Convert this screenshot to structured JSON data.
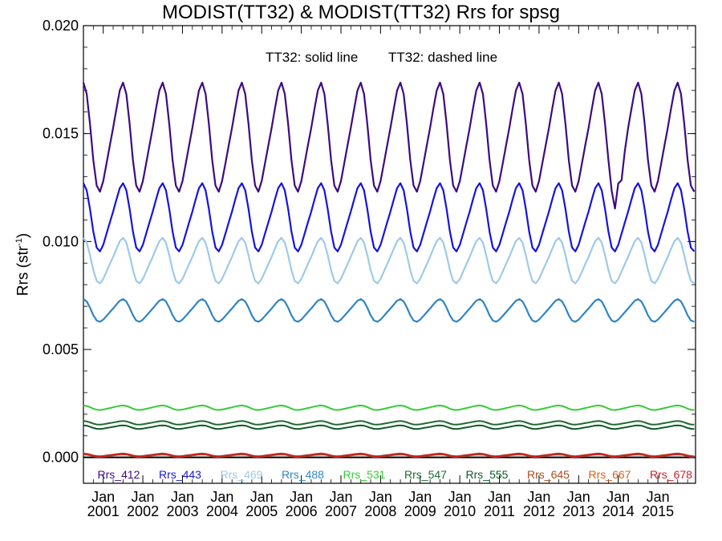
{
  "chart_data": {
    "type": "line",
    "title": "MODIST(TT32) & MODIST(TT32)  Rrs for spsg",
    "ylabel_base": "Rrs (str",
    "ylabel_sup": "-1",
    "ylabel_end": ")",
    "ylim": [
      -0.0012,
      0.02
    ],
    "xlim": [
      2000.5,
      2015.95
    ],
    "yticks": [
      {
        "value": 0.0,
        "label": "0.000"
      },
      {
        "value": 0.005,
        "label": "0.005"
      },
      {
        "value": 0.01,
        "label": "0.010"
      },
      {
        "value": 0.015,
        "label": "0.015"
      },
      {
        "value": 0.02,
        "label": "0.020"
      }
    ],
    "xticks": [
      {
        "value": 2001,
        "month": "Jan",
        "year": "2001"
      },
      {
        "value": 2002,
        "month": "Jan",
        "year": "2002"
      },
      {
        "value": 2003,
        "month": "Jan",
        "year": "2003"
      },
      {
        "value": 2004,
        "month": "Jan",
        "year": "2004"
      },
      {
        "value": 2005,
        "month": "Jan",
        "year": "2005"
      },
      {
        "value": 2006,
        "month": "Jan",
        "year": "2006"
      },
      {
        "value": 2007,
        "month": "Jan",
        "year": "2007"
      },
      {
        "value": 2008,
        "month": "Jan",
        "year": "2008"
      },
      {
        "value": 2009,
        "month": "Jan",
        "year": "2009"
      },
      {
        "value": 2010,
        "month": "Jan",
        "year": "2010"
      },
      {
        "value": 2011,
        "month": "Jan",
        "year": "2011"
      },
      {
        "value": 2012,
        "month": "Jan",
        "year": "2012"
      },
      {
        "value": 2013,
        "month": "Jan",
        "year": "2013"
      },
      {
        "value": 2014,
        "month": "Jan",
        "year": "2014"
      },
      {
        "value": 2015,
        "month": "Jan",
        "year": "2015"
      }
    ],
    "annotations": {
      "solid": "TT32: solid line",
      "dashed": "TT32: dashed line"
    },
    "series": [
      {
        "name": "Rrs_412",
        "color": "#3d0a80",
        "mean": 0.0148,
        "amp": 0.0024,
        "phase": 0.45,
        "width": 2.2,
        "dips": [
          2013.9,
          2014.1
        ]
      },
      {
        "name": "Rrs_443",
        "color": "#1414e0",
        "mean": 0.0111,
        "amp": 0.0015,
        "phase": 0.45,
        "width": 2.2,
        "dips": []
      },
      {
        "name": "Rrs_469",
        "color": "#9ecae8",
        "mean": 0.0091,
        "amp": 0.001,
        "phase": 0.45,
        "width": 2.2,
        "dips": []
      },
      {
        "name": "Rrs_488",
        "color": "#2f84c4",
        "mean": 0.0068,
        "amp": 0.0005,
        "phase": 0.45,
        "width": 2.2,
        "dips": []
      },
      {
        "name": "Rrs_531",
        "color": "#33cc33",
        "mean": 0.0023,
        "amp": 0.0001,
        "phase": 0.45,
        "width": 2.0,
        "dips": []
      },
      {
        "name": "Rrs_547",
        "color": "#1f6b2e",
        "mean": 0.0016,
        "amp": 8e-05,
        "phase": 0.45,
        "width": 2.0,
        "dips": []
      },
      {
        "name": "Rrs_555",
        "color": "#0f5a2a",
        "mean": 0.0014,
        "amp": 8e-05,
        "phase": 0.45,
        "width": 2.0,
        "dips": []
      },
      {
        "name": "Rrs_645",
        "color": "#b04a1e",
        "mean": 0.00012,
        "amp": 6e-05,
        "phase": 0.45,
        "width": 1.8,
        "dips": []
      },
      {
        "name": "Rrs_667",
        "color": "#e0601a",
        "mean": 8e-05,
        "amp": 5e-05,
        "phase": 0.45,
        "width": 1.8,
        "dips": []
      },
      {
        "name": "Rrs_678",
        "color": "#c81e28",
        "mean": 0.0001,
        "amp": 5e-05,
        "phase": 0.45,
        "width": 1.8,
        "dips": []
      }
    ]
  }
}
